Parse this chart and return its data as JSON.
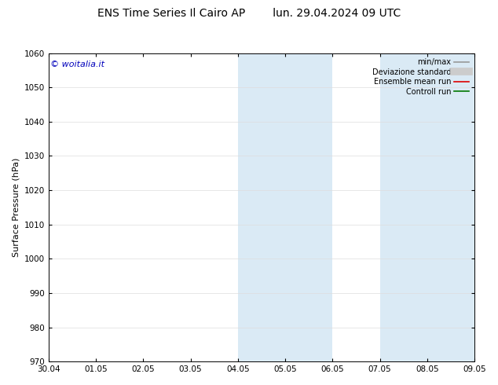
{
  "title": "ENS Time Series Il Cairo AP        lun. 29.04.2024 09 UTC",
  "ylabel": "Surface Pressure (hPa)",
  "ylim": [
    970,
    1060
  ],
  "yticks": [
    970,
    980,
    990,
    1000,
    1010,
    1020,
    1030,
    1040,
    1050,
    1060
  ],
  "xtick_labels": [
    "30.04",
    "01.05",
    "02.05",
    "03.05",
    "04.05",
    "05.05",
    "06.05",
    "07.05",
    "08.05",
    "09.05"
  ],
  "xtick_positions": [
    0,
    1,
    2,
    3,
    4,
    5,
    6,
    7,
    8,
    9
  ],
  "xlim": [
    0,
    9
  ],
  "shade_regions": [
    {
      "xmin": 4.0,
      "xmax": 4.5,
      "color": "#daeaf5"
    },
    {
      "xmin": 4.5,
      "xmax": 5.0,
      "color": "#daeaf5"
    },
    {
      "xmin": 5.0,
      "xmax": 5.5,
      "color": "#daeaf5"
    },
    {
      "xmin": 5.5,
      "xmax": 6.0,
      "color": "#daeaf5"
    },
    {
      "xmin": 7.0,
      "xmax": 7.5,
      "color": "#daeaf5"
    },
    {
      "xmin": 7.5,
      "xmax": 8.0,
      "color": "#daeaf5"
    },
    {
      "xmin": 8.0,
      "xmax": 8.5,
      "color": "#daeaf5"
    },
    {
      "xmin": 8.5,
      "xmax": 9.0,
      "color": "#daeaf5"
    }
  ],
  "copyright_text": "© woitalia.it",
  "copyright_color": "#0000bb",
  "legend_items": [
    {
      "label": "min/max",
      "color": "#999999",
      "lw": 1.2
    },
    {
      "label": "Deviazione standard",
      "color": "#cccccc",
      "lw": 7
    },
    {
      "label": "Ensemble mean run",
      "color": "#dd0000",
      "lw": 1.2
    },
    {
      "label": "Controll run",
      "color": "#007700",
      "lw": 1.2
    }
  ],
  "background_color": "#ffffff",
  "grid_color": "#dddddd",
  "title_fontsize": 10,
  "label_fontsize": 8,
  "tick_fontsize": 7.5,
  "legend_fontsize": 7,
  "copyright_fontsize": 8
}
